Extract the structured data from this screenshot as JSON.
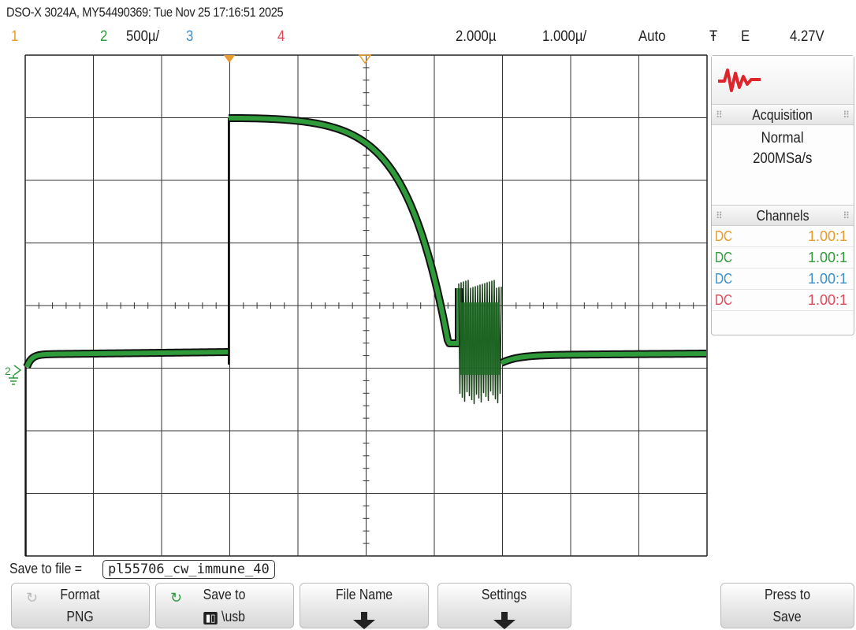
{
  "header": {
    "title": "DSO-X 3024A, MY54490369: Tue Nov 25 17:16:51 2025"
  },
  "status": {
    "ch1": "1",
    "ch2": "2",
    "ch2_scale": "500µ/",
    "ch3": "3",
    "ch4": "4",
    "horizontal_position": "2.000µ",
    "time_per_div": "1.000µ/",
    "trigger_mode": "Auto",
    "trigger_slope_icon": "Ŧ",
    "trigger_source": "E",
    "trigger_level": "4.27V"
  },
  "waveform": {
    "channel": "2",
    "color": "#2e9a3a",
    "description_icon": "ground-symbol-icon"
  },
  "side_panel": {
    "acquisition": {
      "heading": "Acquisition",
      "mode": "Normal",
      "rate": "200MSa/s"
    },
    "channels": {
      "heading": "Channels",
      "rows": [
        {
          "coupling": "DC",
          "probe": "1.00:1",
          "color": "#e89a2a"
        },
        {
          "coupling": "DC",
          "probe": "1.00:1",
          "color": "#2e9a3a"
        },
        {
          "coupling": "DC",
          "probe": "1.00:1",
          "color": "#3a8fc8"
        },
        {
          "coupling": "DC",
          "probe": "1.00:1",
          "color": "#e04858"
        }
      ]
    }
  },
  "save_bar": {
    "label": "Save to file =",
    "filename": "pl55706_cw_immune_40"
  },
  "softkeys": {
    "format": {
      "label": "Format",
      "value": "PNG"
    },
    "save_to": {
      "label": "Save to",
      "value": "\\usb"
    },
    "file_name": {
      "label": "File Name"
    },
    "settings": {
      "label": "Settings"
    },
    "press_to_save": {
      "label": "Press to",
      "value": "Save"
    }
  }
}
